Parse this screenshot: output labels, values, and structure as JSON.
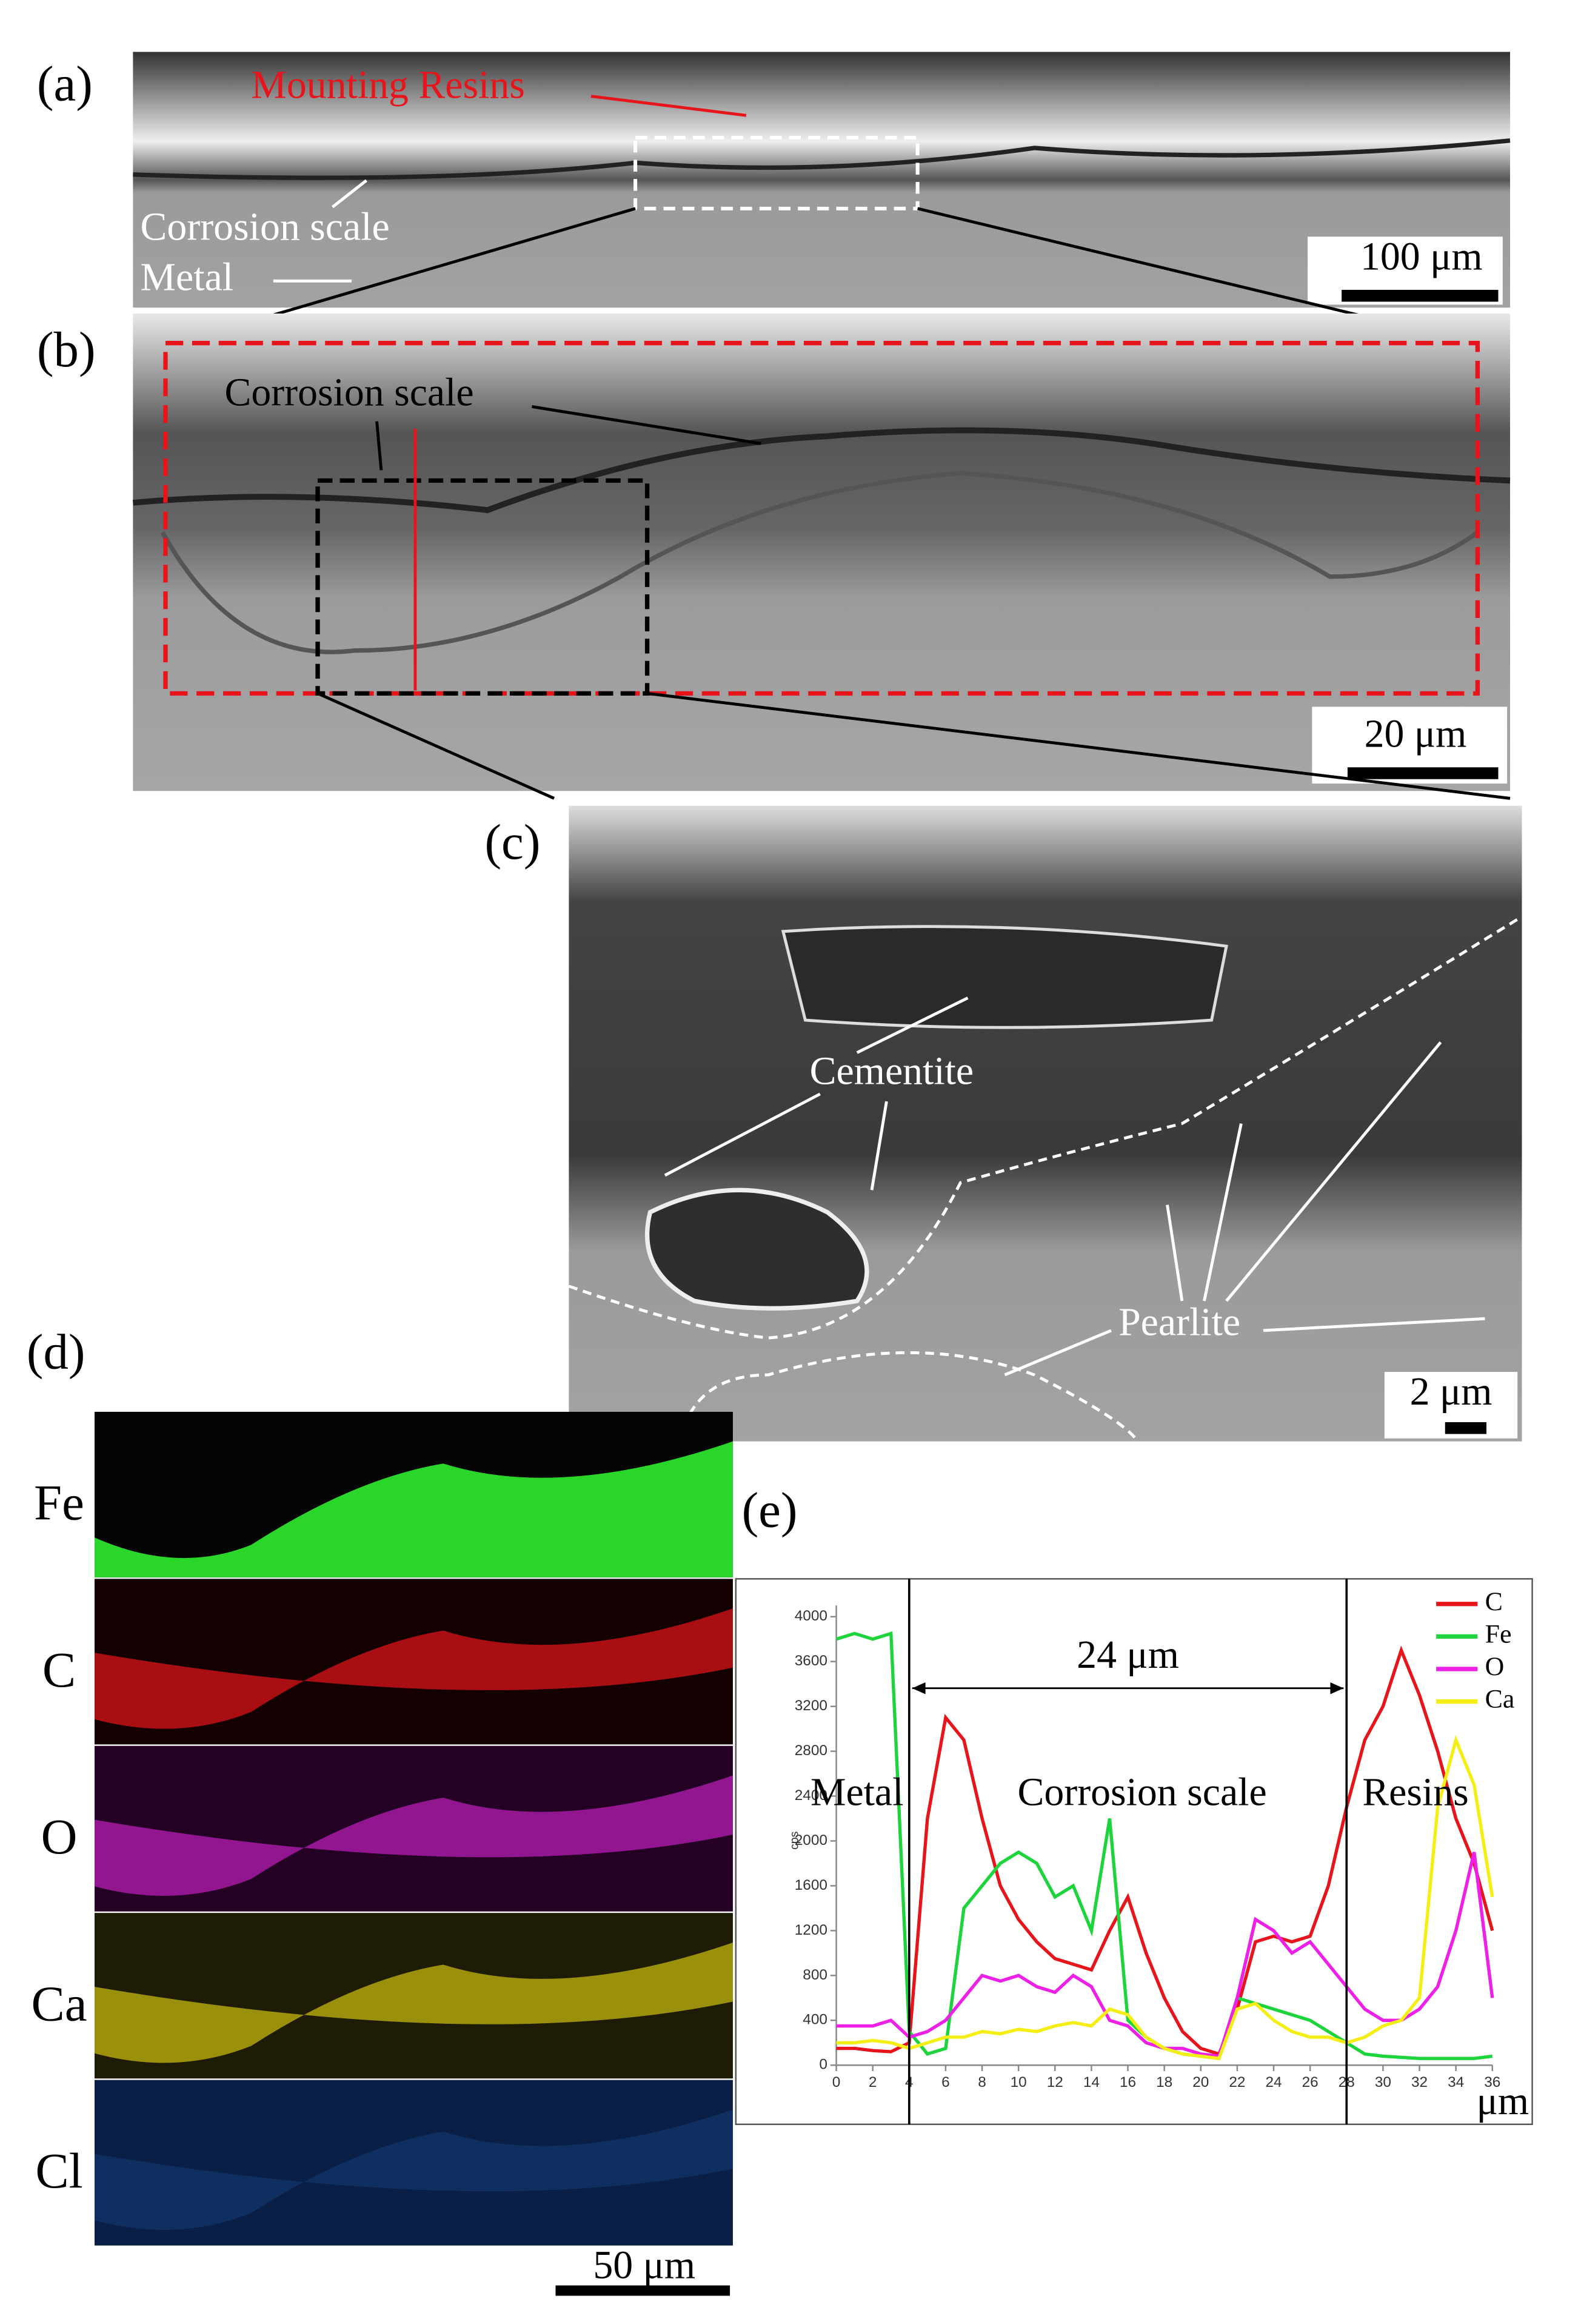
{
  "panels": {
    "a": {
      "label": "(a)",
      "annotations": [
        "Mounting Resins",
        "Corrosion scale",
        "Metal"
      ],
      "scale_bar": "100 μm"
    },
    "b": {
      "label": "(b)",
      "annotations": [
        "Corrosion scale"
      ],
      "scale_bar": "20 μm"
    },
    "c": {
      "label": "(c)",
      "annotations": [
        "Cementite",
        "Pearlite"
      ],
      "scale_bar": "2 μm"
    },
    "d": {
      "label": "(d)",
      "elements": [
        "Fe",
        "C",
        "O",
        "Ca",
        "Cl"
      ],
      "scale_bar": "50 μm"
    },
    "e": {
      "label": "(e)"
    }
  },
  "chart_data": {
    "type": "line",
    "ylabel": "cps",
    "xlabel": "μm",
    "annotations": [
      "Metal",
      "Corrosion scale",
      "Resins"
    ],
    "span_label": "24 μm",
    "markers": [
      4,
      28
    ],
    "x": [
      0,
      1,
      2,
      3,
      4,
      5,
      6,
      7,
      8,
      9,
      10,
      11,
      12,
      13,
      14,
      15,
      16,
      17,
      18,
      19,
      20,
      21,
      22,
      23,
      24,
      25,
      26,
      27,
      28,
      29,
      30,
      31,
      32,
      33,
      34,
      35,
      36
    ],
    "xlim": [
      0,
      36
    ],
    "xticks": [
      0,
      2,
      4,
      6,
      8,
      10,
      12,
      14,
      16,
      18,
      20,
      22,
      24,
      26,
      28,
      30,
      32,
      34,
      36
    ],
    "ylim": [
      0,
      4100
    ],
    "yticks": [
      0,
      400,
      800,
      1200,
      1600,
      2000,
      2400,
      2800,
      3200,
      3600,
      4000
    ],
    "series": [
      {
        "name": "C",
        "color": "#e8141b",
        "values": [
          150,
          150,
          130,
          120,
          200,
          2200,
          3100,
          2900,
          2200,
          1600,
          1300,
          1100,
          950,
          900,
          850,
          1200,
          1500,
          1000,
          600,
          300,
          150,
          100,
          500,
          1100,
          1150,
          1100,
          1150,
          1600,
          2300,
          2900,
          3200,
          3700,
          3300,
          2800,
          2200,
          1800,
          1200
        ]
      },
      {
        "name": "Fe",
        "color": "#1ed43c",
        "values": [
          3800,
          3850,
          3800,
          3850,
          300,
          100,
          150,
          1400,
          1600,
          1800,
          1900,
          1800,
          1500,
          1600,
          1200,
          2200,
          400,
          250,
          150,
          100,
          80,
          60,
          600,
          550,
          500,
          450,
          400,
          300,
          200,
          100,
          80,
          70,
          60,
          60,
          60,
          60,
          80
        ]
      },
      {
        "name": "O",
        "color": "#ee1fe6",
        "values": [
          350,
          350,
          350,
          400,
          250,
          300,
          400,
          600,
          800,
          750,
          800,
          700,
          650,
          800,
          700,
          400,
          350,
          200,
          150,
          150,
          100,
          80,
          600,
          1300,
          1200,
          1000,
          1100,
          900,
          700,
          500,
          400,
          400,
          500,
          700,
          1200,
          1900,
          600
        ]
      },
      {
        "name": "Ca",
        "color": "#f4ee14",
        "values": [
          200,
          200,
          220,
          200,
          150,
          200,
          250,
          250,
          300,
          280,
          320,
          300,
          350,
          380,
          350,
          500,
          450,
          250,
          150,
          100,
          80,
          60,
          500,
          550,
          400,
          300,
          250,
          250,
          200,
          250,
          350,
          400,
          600,
          2300,
          2900,
          2500,
          1500
        ]
      }
    ]
  }
}
